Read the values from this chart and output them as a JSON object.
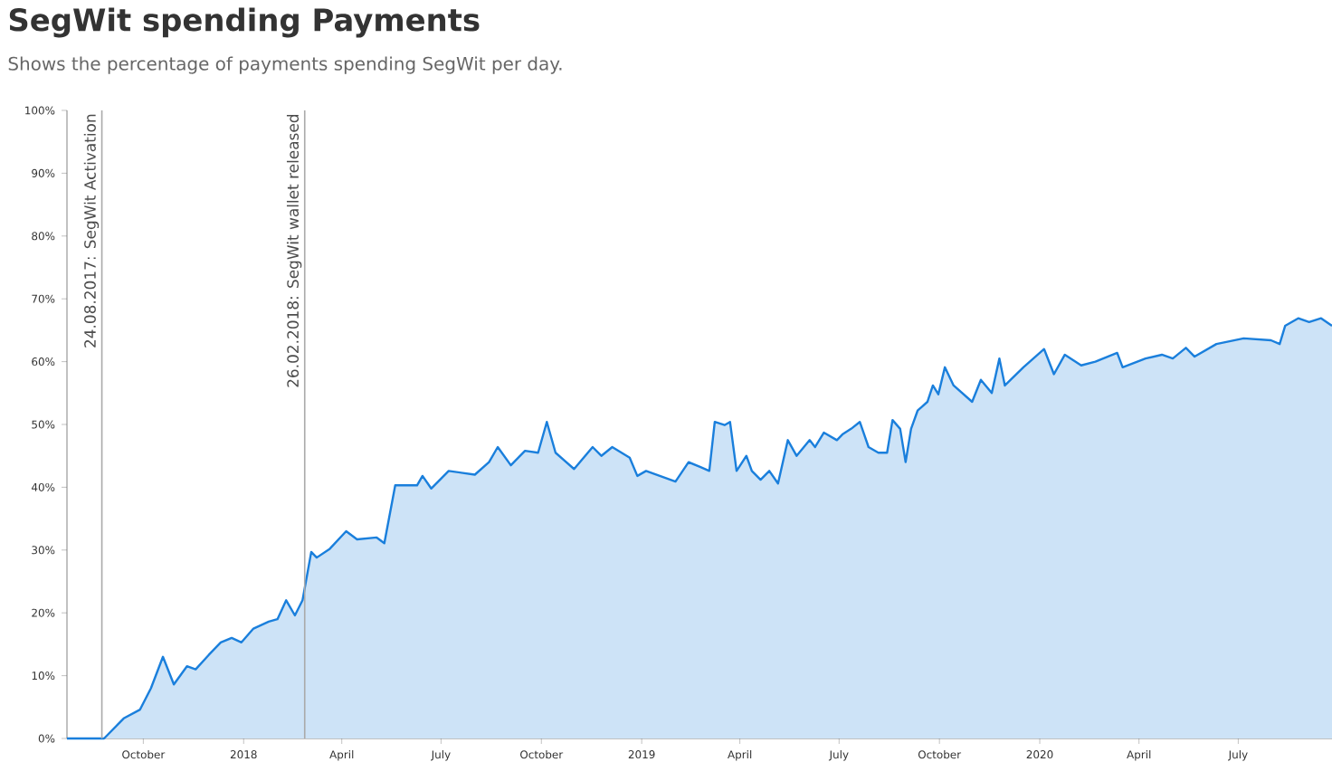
{
  "chart_data": {
    "type": "area",
    "title": "SegWit spending Payments",
    "subtitle": "Shows the percentage of payments spending SegWit per day.",
    "x": [
      "2017-07-23",
      "2017-08-26",
      "2017-09-13",
      "2017-09-28",
      "2017-10-08",
      "2017-10-19",
      "2017-10-29",
      "2017-11-10",
      "2017-11-18",
      "2017-11-30",
      "2017-12-11",
      "2017-12-21",
      "2017-12-30",
      "2018-01-10",
      "2018-01-24",
      "2018-02-01",
      "2018-02-09",
      "2018-02-17",
      "2018-02-24",
      "2018-03-04",
      "2018-03-09",
      "2018-03-21",
      "2018-04-05",
      "2018-04-15",
      "2018-05-03",
      "2018-05-10",
      "2018-05-20",
      "2018-06-09",
      "2018-06-14",
      "2018-06-22",
      "2018-07-08",
      "2018-08-01",
      "2018-08-14",
      "2018-08-22",
      "2018-09-03",
      "2018-09-16",
      "2018-09-28",
      "2018-10-06",
      "2018-10-14",
      "2018-10-31",
      "2018-11-17",
      "2018-11-25",
      "2018-12-05",
      "2018-12-21",
      "2018-12-28",
      "2019-01-05",
      "2019-02-01",
      "2019-02-13",
      "2019-02-24",
      "2019-03-04",
      "2019-03-09",
      "2019-03-18",
      "2019-03-23",
      "2019-03-29",
      "2019-04-07",
      "2019-04-12",
      "2019-04-20",
      "2019-04-28",
      "2019-05-06",
      "2019-05-15",
      "2019-05-23",
      "2019-06-04",
      "2019-06-09",
      "2019-06-17",
      "2019-06-29",
      "2019-07-04",
      "2019-07-12",
      "2019-07-20",
      "2019-07-28",
      "2019-08-06",
      "2019-08-14",
      "2019-08-19",
      "2019-08-26",
      "2019-08-31",
      "2019-09-05",
      "2019-09-11",
      "2019-09-20",
      "2019-09-25",
      "2019-09-30",
      "2019-10-06",
      "2019-10-14",
      "2019-10-31",
      "2019-11-08",
      "2019-11-18",
      "2019-11-25",
      "2019-11-30",
      "2019-12-17",
      "2020-01-05",
      "2020-01-14",
      "2020-01-24",
      "2020-02-08",
      "2020-02-21",
      "2020-03-12",
      "2020-03-17",
      "2020-04-07",
      "2020-04-22",
      "2020-05-02",
      "2020-05-14",
      "2020-05-22",
      "2020-06-11",
      "2020-07-06",
      "2020-07-31",
      "2020-08-08",
      "2020-08-13",
      "2020-08-25",
      "2020-09-04",
      "2020-09-15",
      "2020-09-25"
    ],
    "series": [
      {
        "color": "#1a7fdc",
        "values": [
          0,
          0,
          3.2,
          4.6,
          8,
          13,
          8.6,
          11.5,
          11,
          13.3,
          15.3,
          16,
          15.3,
          17.5,
          18.6,
          19,
          22,
          19.6,
          22,
          29.7,
          28.8,
          30.2,
          33,
          31.7,
          32,
          31.1,
          40.3,
          40.3,
          41.8,
          39.8,
          42.6,
          42,
          44,
          46.4,
          43.5,
          45.8,
          45.5,
          50.4,
          45.5,
          42.9,
          46.4,
          45,
          46.4,
          44.7,
          41.8,
          42.6,
          40.9,
          44,
          43.2,
          42.6,
          50.4,
          49.9,
          50.4,
          42.6,
          45,
          42.6,
          41.2,
          42.6,
          40.6,
          47.5,
          45,
          47.5,
          46.4,
          48.7,
          47.5,
          48.4,
          49.3,
          50.4,
          46.4,
          45.5,
          45.5,
          50.7,
          49.3,
          44,
          49.3,
          52.2,
          53.6,
          56.2,
          54.8,
          59.1,
          56.2,
          53.6,
          57.1,
          55,
          60.5,
          56.2,
          59.1,
          62,
          58,
          61.1,
          59.4,
          60,
          61.4,
          59.1,
          60.5,
          61.1,
          60.5,
          62.2,
          60.8,
          62.8,
          63.7,
          63.4,
          62.8,
          65.7,
          66.9,
          66.3,
          66.9,
          65.7
        ]
      }
    ],
    "xlim": [
      "2017-07-23",
      "2020-09-25"
    ],
    "xticks": [
      {
        "value": "2017-10-01",
        "label": "October"
      },
      {
        "value": "2018-01-01",
        "label": "2018"
      },
      {
        "value": "2018-04-01",
        "label": "April"
      },
      {
        "value": "2018-07-01",
        "label": "July"
      },
      {
        "value": "2018-10-01",
        "label": "October"
      },
      {
        "value": "2019-01-01",
        "label": "2019"
      },
      {
        "value": "2019-04-01",
        "label": "April"
      },
      {
        "value": "2019-07-01",
        "label": "July"
      },
      {
        "value": "2019-10-01",
        "label": "October"
      },
      {
        "value": "2020-01-01",
        "label": "2020"
      },
      {
        "value": "2020-04-01",
        "label": "April"
      },
      {
        "value": "2020-07-01",
        "label": "July"
      }
    ],
    "ylim": [
      0,
      100
    ],
    "yticks": [
      {
        "value": 0,
        "label": "0%"
      },
      {
        "value": 10,
        "label": "10%"
      },
      {
        "value": 20,
        "label": "20%"
      },
      {
        "value": 30,
        "label": "30%"
      },
      {
        "value": 40,
        "label": "40%"
      },
      {
        "value": 50,
        "label": "50%"
      },
      {
        "value": 60,
        "label": "60%"
      },
      {
        "value": 70,
        "label": "70%"
      },
      {
        "value": 80,
        "label": "80%"
      },
      {
        "value": 90,
        "label": "90%"
      },
      {
        "value": 100,
        "label": "100%"
      }
    ],
    "ref_lines": [
      {
        "axis": "x",
        "value": "2017-08-24",
        "label": "24.08.2017: SegWit Activation",
        "color": "#aaaaaa"
      },
      {
        "axis": "x",
        "value": "2018-02-26",
        "label": "26.02.2018: SegWit wallet released",
        "color": "#aaaaaa"
      }
    ],
    "grid": false
  }
}
